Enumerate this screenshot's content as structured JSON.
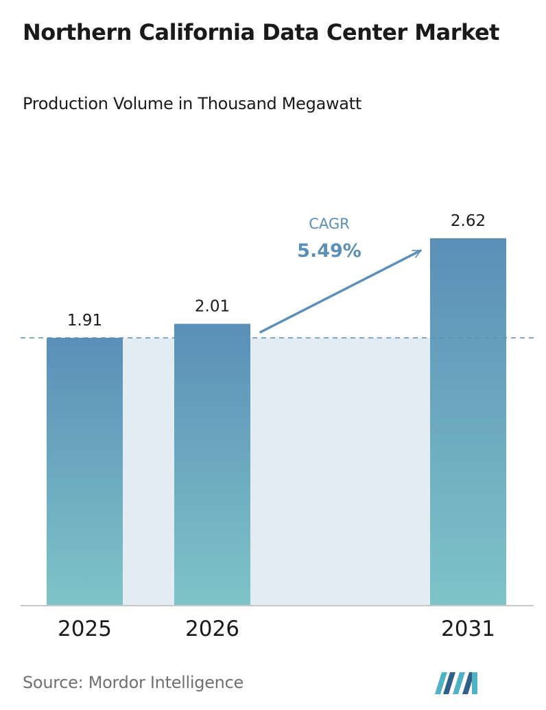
{
  "header": {
    "title": "Northern California Data Center Market",
    "subtitle": "Production Volume in Thousand Megawatt"
  },
  "cagr": {
    "label": "CAGR",
    "value": "5.49%"
  },
  "footer": {
    "source": "Source:  Mordor Intelligence"
  },
  "colors": {
    "bar_top": "#5b8fb8",
    "bar_bottom": "#7ec4c8",
    "band": "#e4ecf3",
    "cagr": "#5b8fb8",
    "dashed_line": "#5b8fb8",
    "logo_dark": "#2f5f8a",
    "logo_light": "#4fb3c4"
  },
  "chart_data": {
    "type": "bar",
    "categories": [
      "2025",
      "2026",
      "2031"
    ],
    "values": [
      1.91,
      2.01,
      2.62
    ],
    "value_labels": [
      "1.91",
      "2.01",
      "2.62"
    ],
    "title": "Northern California Data Center Market",
    "subtitle": "Production Volume in Thousand Megawatt",
    "xlabel": "",
    "ylabel": "",
    "grid": false,
    "legend": "none",
    "reference_line": 1.91
  }
}
